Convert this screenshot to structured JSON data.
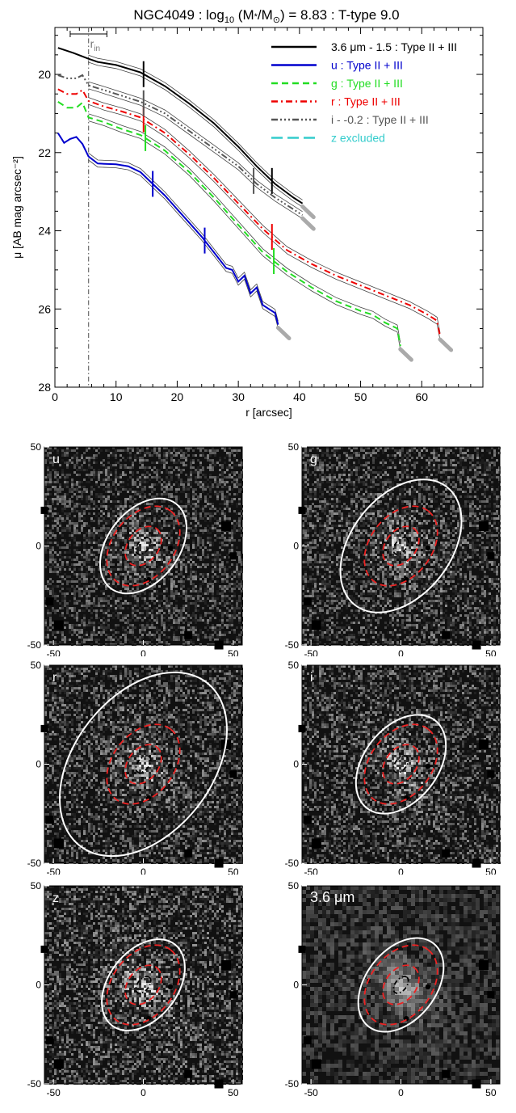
{
  "chart_data": [
    {
      "type": "line",
      "title": "NGC4049 : log10 (M*/M⊙) = 8.83 : T-type 9.0",
      "title_parts": {
        "a": "NGC4049 : log",
        "sub": "10",
        "b": " (M",
        "c": "*",
        "d": "/M",
        "e": "⊙",
        "f": ") = 8.83 : T-type 9.0"
      },
      "xlabel": "r [arcsec]",
      "ylabel": "μ [AB mag arcsec⁻²]",
      "xlim": [
        0,
        70
      ],
      "ylim": [
        28,
        18.8
      ],
      "y_inverted": true,
      "x_ticks": [
        0,
        10,
        20,
        30,
        40,
        50,
        60
      ],
      "y_ticks": [
        20,
        22,
        24,
        26,
        28
      ],
      "legend_position": "top-right",
      "rin": {
        "label": "r",
        "sub": "in",
        "value": 5.5,
        "bar": [
          2.5,
          8.5
        ]
      },
      "series": [
        {
          "name": "3.6 μm - 1.5 : Type II + III",
          "color": "#000000",
          "dash": "solid",
          "points": [
            [
              0.5,
              19.32
            ],
            [
              3,
              19.45
            ],
            [
              5.5,
              19.6
            ],
            [
              7,
              19.68
            ],
            [
              10,
              19.76
            ],
            [
              14,
              19.95
            ],
            [
              18,
              20.3
            ],
            [
              22,
              20.75
            ],
            [
              26,
              21.25
            ],
            [
              30,
              21.85
            ],
            [
              33,
              22.35
            ],
            [
              36,
              22.8
            ],
            [
              39,
              23.15
            ],
            [
              40.5,
              23.3
            ]
          ],
          "breaks": [
            14.5,
            35.5
          ]
        },
        {
          "name": "u : Type II + III",
          "color": "#0000CD",
          "dash": "solid",
          "points": [
            [
              0.5,
              21.5
            ],
            [
              1.5,
              21.75
            ],
            [
              2.5,
              21.65
            ],
            [
              3.5,
              21.6
            ],
            [
              4.5,
              21.78
            ],
            [
              5.5,
              22.1
            ],
            [
              7,
              22.28
            ],
            [
              10,
              22.3
            ],
            [
              12,
              22.35
            ],
            [
              14,
              22.5
            ],
            [
              16,
              22.8
            ],
            [
              18,
              23.1
            ],
            [
              20,
              23.45
            ],
            [
              22,
              23.8
            ],
            [
              24,
              24.15
            ],
            [
              26,
              24.55
            ],
            [
              28,
              24.95
            ],
            [
              29,
              25.0
            ],
            [
              30,
              25.3
            ],
            [
              31,
              25.15
            ],
            [
              32,
              25.6
            ],
            [
              33,
              25.45
            ],
            [
              34,
              25.9
            ],
            [
              35,
              26.0
            ],
            [
              36,
              26.1
            ],
            [
              36.5,
              26.4
            ]
          ],
          "breaks": [
            16.0,
            24.5
          ]
        },
        {
          "name": "g : Type II + III",
          "color": "#22DD22",
          "dash": "dashed",
          "points": [
            [
              0.5,
              20.7
            ],
            [
              2,
              20.85
            ],
            [
              3.5,
              20.85
            ],
            [
              4.5,
              20.72
            ],
            [
              5.5,
              21.1
            ],
            [
              8,
              21.22
            ],
            [
              11,
              21.4
            ],
            [
              14,
              21.55
            ],
            [
              18,
              21.95
            ],
            [
              22,
              22.5
            ],
            [
              26,
              23.15
            ],
            [
              30,
              23.85
            ],
            [
              34,
              24.55
            ],
            [
              38,
              25.05
            ],
            [
              42,
              25.45
            ],
            [
              46,
              25.8
            ],
            [
              50,
              26.05
            ],
            [
              52,
              26.15
            ],
            [
              54,
              26.35
            ],
            [
              56,
              26.5
            ],
            [
              56.5,
              26.95
            ]
          ],
          "breaks": [
            14.8,
            35.8
          ]
        },
        {
          "name": "r : Type II + III",
          "color": "#EE0000",
          "dash": "dashdot",
          "points": [
            [
              0.5,
              20.38
            ],
            [
              2,
              20.5
            ],
            [
              3.5,
              20.5
            ],
            [
              4.5,
              20.4
            ],
            [
              5.5,
              20.68
            ],
            [
              8,
              20.82
            ],
            [
              11,
              20.95
            ],
            [
              14,
              21.1
            ],
            [
              18,
              21.5
            ],
            [
              22,
              22.05
            ],
            [
              26,
              22.65
            ],
            [
              30,
              23.3
            ],
            [
              34,
              23.95
            ],
            [
              38,
              24.5
            ],
            [
              42,
              24.85
            ],
            [
              46,
              25.15
            ],
            [
              50,
              25.4
            ],
            [
              54,
              25.65
            ],
            [
              58,
              25.9
            ],
            [
              61,
              26.15
            ],
            [
              62.5,
              26.3
            ],
            [
              63,
              26.7
            ]
          ],
          "breaks": [
            14.5,
            35.5
          ]
        },
        {
          "name": "i - -0.2 : Type II + III",
          "color": "#555555",
          "dash": "dashdotdotdot",
          "points": [
            [
              0.5,
              20.02
            ],
            [
              2,
              20.1
            ],
            [
              3.5,
              20.1
            ],
            [
              4.5,
              20.02
            ],
            [
              5.5,
              20.28
            ],
            [
              8,
              20.4
            ],
            [
              11,
              20.55
            ],
            [
              14,
              20.7
            ],
            [
              18,
              21.0
            ],
            [
              22,
              21.45
            ],
            [
              26,
              21.9
            ],
            [
              30,
              22.35
            ],
            [
              33,
              22.8
            ],
            [
              36,
              23.15
            ],
            [
              39,
              23.45
            ],
            [
              40.5,
              23.6
            ]
          ],
          "breaks": [
            14.5,
            32.5
          ]
        },
        {
          "name": "z excluded",
          "color": "#33CCCC",
          "dash": "longdash",
          "points": []
        }
      ]
    },
    {
      "type": "image",
      "panels": [
        {
          "label": "u",
          "sky_level": 0.28,
          "outer_ellipse": 0.75
        },
        {
          "label": "g",
          "sky_level": 0.3,
          "outer_ellipse": 1.05
        },
        {
          "label": "r",
          "sky_level": 0.3,
          "outer_ellipse": 1.45
        },
        {
          "label": "i",
          "sky_level": 0.3,
          "outer_ellipse": 0.78
        },
        {
          "label": "z",
          "sky_level": 0.32,
          "outer_ellipse": 0.72
        },
        {
          "label": "3.6 μm",
          "sky_level": 0.18,
          "outer_ellipse": 0.74
        }
      ],
      "axis_ticks": [
        -50,
        0,
        50
      ],
      "xlim": [
        -55,
        55
      ],
      "ylim": [
        -50,
        50
      ]
    }
  ]
}
